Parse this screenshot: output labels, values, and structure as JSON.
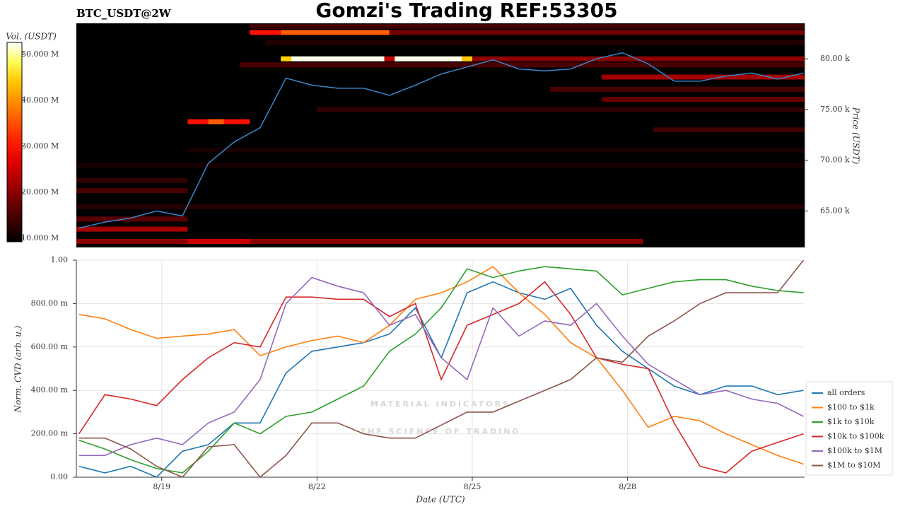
{
  "chart_data": [
    {
      "type": "heatmap",
      "title": "Gomzi's Trading REF:53305",
      "subtitle": "BTC_USDT@2W",
      "ylabel": "Price (USDT)",
      "colorbar_label": "Vol. (USDT)",
      "xlim": [
        17.35,
        31.42
      ],
      "ylim": [
        61400,
        83500
      ],
      "yticks": [
        {
          "value": 65000,
          "label": "65.00 k"
        },
        {
          "value": 70000,
          "label": "70.00 k"
        },
        {
          "value": 75000,
          "label": "75.00 k"
        },
        {
          "value": 80000,
          "label": "80.00 k"
        }
      ],
      "clim": [
        9200000,
        52600000
      ],
      "cticks": [
        {
          "value": 10000000,
          "label": "10.000 M"
        },
        {
          "value": 20000000,
          "label": "20.000 M"
        },
        {
          "value": 30000000,
          "label": "30.000 M"
        },
        {
          "value": 40000000,
          "label": "40.000 M"
        },
        {
          "value": 50000000,
          "label": "50.000 M"
        }
      ],
      "cells": {
        "x0": [
          21.3,
          21.5,
          23.3,
          23.5,
          24.8,
          20.7,
          21.3,
          23.4,
          19.5,
          19.9,
          25.0,
          20.5,
          20.7,
          26.5,
          27.5,
          22.0,
          17.35,
          19.5,
          17.35,
          17.35,
          17.35,
          17.35,
          17.35,
          17.35,
          19.5,
          27.5,
          28.5,
          21.0
        ],
        "x1": [
          21.5,
          23.3,
          23.5,
          24.8,
          25.0,
          21.3,
          23.4,
          31.42,
          20.7,
          20.2,
          31.42,
          31.42,
          31.42,
          31.42,
          31.42,
          31.42,
          28.3,
          20.7,
          19.5,
          19.5,
          31.42,
          19.5,
          19.5,
          31.42,
          31.42,
          31.42,
          31.42,
          31.42
        ],
        "y": [
          80000,
          80000,
          80000,
          80000,
          80000,
          82600,
          82600,
          82600,
          73800,
          73800,
          80000,
          79400,
          83200,
          77000,
          76000,
          75000,
          62000,
          62000,
          63200,
          64200,
          65400,
          67000,
          68000,
          69500,
          71000,
          78200,
          73000,
          81600
        ],
        "values": [
          45000000,
          52000000,
          24000000,
          52000000,
          44000000,
          30000000,
          36000000,
          18000000,
          30000000,
          36000000,
          20000000,
          15000000,
          14000000,
          15000000,
          17000000,
          13000000,
          20000000,
          25000000,
          22000000,
          16000000,
          12000000,
          15000000,
          13000000,
          11000000,
          11000000,
          22000000,
          14000000,
          12000000
        ]
      },
      "price": {
        "color": "#3a86c8",
        "x": [
          17.4,
          17.9,
          18.4,
          18.9,
          19.4,
          19.9,
          20.4,
          20.9,
          21.4,
          21.9,
          22.4,
          22.9,
          23.4,
          23.9,
          24.4,
          24.9,
          25.4,
          25.9,
          26.4,
          26.9,
          27.4,
          27.9,
          28.4,
          28.9,
          29.4,
          29.9,
          30.4,
          30.9,
          31.4
        ],
        "values": [
          63300,
          63900,
          64300,
          65000,
          64500,
          69700,
          71800,
          73200,
          78100,
          77400,
          77100,
          77100,
          76400,
          77400,
          78500,
          79200,
          79900,
          79000,
          78800,
          79000,
          80000,
          80600,
          79500,
          77800,
          77800,
          78300,
          78600,
          78000,
          78600
        ]
      }
    },
    {
      "type": "line",
      "xlabel": "Date (UTC)",
      "ylabel": "Norm. CVD (arb. u.)",
      "xlim": [
        17.35,
        31.42
      ],
      "xticks": [
        {
          "value": 19,
          "label": "8/19"
        },
        {
          "value": 22,
          "label": "8/22"
        },
        {
          "value": 25,
          "label": "8/25"
        },
        {
          "value": 28,
          "label": "8/28"
        }
      ],
      "ylim": [
        0,
        1
      ],
      "yticks": [
        {
          "value": 0,
          "label": "0.00"
        },
        {
          "value": 0.2,
          "label": "200.00 m"
        },
        {
          "value": 0.4,
          "label": "400.00 m"
        },
        {
          "value": 0.6,
          "label": "600.00 m"
        },
        {
          "value": 0.8,
          "label": "800.00 m"
        },
        {
          "value": 1,
          "label": "1.00"
        }
      ],
      "grid": true,
      "legend": "right",
      "watermark": [
        "MATERIAL INDICATORS",
        "THE SCIENCE OF TRADING"
      ],
      "x": [
        17.4,
        17.9,
        18.4,
        18.9,
        19.4,
        19.9,
        20.4,
        20.9,
        21.4,
        21.9,
        22.4,
        22.9,
        23.4,
        23.9,
        24.4,
        24.9,
        25.4,
        25.9,
        26.4,
        26.9,
        27.4,
        27.9,
        28.4,
        28.9,
        29.4,
        29.9,
        30.4,
        30.9,
        31.4
      ],
      "series": [
        {
          "name": "all orders",
          "color": "#1f77b4",
          "values": [
            0.05,
            0.02,
            0.05,
            0.0,
            0.12,
            0.15,
            0.25,
            0.25,
            0.48,
            0.58,
            0.6,
            0.62,
            0.66,
            0.78,
            0.55,
            0.85,
            0.9,
            0.85,
            0.82,
            0.87,
            0.7,
            0.58,
            0.5,
            0.42,
            0.38,
            0.42,
            0.42,
            0.38,
            0.4
          ]
        },
        {
          "name": "$100 to $1k",
          "color": "#ff7f0e",
          "values": [
            0.75,
            0.73,
            0.68,
            0.64,
            0.65,
            0.66,
            0.68,
            0.56,
            0.6,
            0.63,
            0.65,
            0.62,
            0.7,
            0.82,
            0.85,
            0.9,
            0.97,
            0.85,
            0.75,
            0.62,
            0.55,
            0.4,
            0.23,
            0.28,
            0.26,
            0.2,
            0.15,
            0.1,
            0.06
          ]
        },
        {
          "name": "$1k to $10k",
          "color": "#2ca02c",
          "values": [
            0.17,
            0.13,
            0.08,
            0.04,
            0.02,
            0.12,
            0.25,
            0.2,
            0.28,
            0.3,
            0.36,
            0.42,
            0.58,
            0.66,
            0.78,
            0.96,
            0.92,
            0.95,
            0.97,
            0.96,
            0.95,
            0.84,
            0.87,
            0.9,
            0.91,
            0.91,
            0.88,
            0.86,
            0.85
          ]
        },
        {
          "name": "$10k to $100k",
          "color": "#d62728",
          "values": [
            0.2,
            0.38,
            0.36,
            0.33,
            0.45,
            0.55,
            0.62,
            0.6,
            0.83,
            0.83,
            0.82,
            0.82,
            0.74,
            0.8,
            0.45,
            0.7,
            0.75,
            0.8,
            0.9,
            0.75,
            0.55,
            0.52,
            0.5,
            0.25,
            0.05,
            0.02,
            0.12,
            0.16,
            0.2
          ]
        },
        {
          "name": "$100k to $1M",
          "color": "#9467bd",
          "values": [
            0.1,
            0.1,
            0.15,
            0.18,
            0.15,
            0.25,
            0.3,
            0.45,
            0.8,
            0.92,
            0.88,
            0.85,
            0.7,
            0.75,
            0.55,
            0.45,
            0.78,
            0.65,
            0.72,
            0.7,
            0.8,
            0.65,
            0.52,
            0.45,
            0.38,
            0.4,
            0.36,
            0.34,
            0.28
          ]
        },
        {
          "name": "$1M to $10M",
          "color": "#8c564b",
          "values": [
            0.18,
            0.18,
            0.13,
            0.05,
            0.0,
            0.14,
            0.15,
            0.0,
            0.1,
            0.25,
            0.25,
            0.2,
            0.18,
            0.18,
            0.24,
            0.3,
            0.3,
            0.35,
            0.4,
            0.45,
            0.55,
            0.53,
            0.65,
            0.72,
            0.8,
            0.85,
            0.85,
            0.85,
            1.0
          ]
        }
      ]
    }
  ]
}
